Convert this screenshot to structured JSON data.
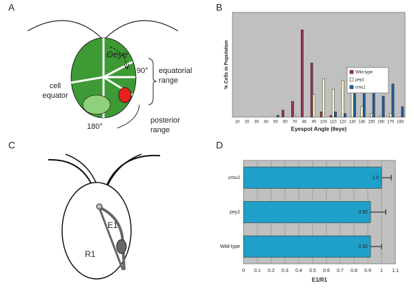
{
  "panel_labels": [
    "A",
    "B",
    "C",
    "D"
  ],
  "diagram_a": {
    "angle_symbol": "Θeye",
    "cell_equator": [
      "cell",
      "equator"
    ],
    "angle_90": "90°",
    "equatorial_range": [
      "equatorial",
      "range"
    ],
    "angle_180": "180°",
    "posterior_range": [
      "posterior",
      "range"
    ]
  },
  "diagram_c": {
    "e1": "E1",
    "r1": "R1"
  },
  "chart_data": [
    {
      "type": "bar",
      "y_label": "% Cells in Population",
      "x_label": "Eyespot Angle (θeye)",
      "categories": [
        "10",
        "20",
        "30",
        "40",
        "50",
        "60",
        "70",
        "80",
        "90",
        "100",
        "110",
        "120",
        "130",
        "140",
        "150",
        "160",
        "170",
        "180"
      ],
      "series": [
        {
          "name": "Wild-type",
          "color": "#993355",
          "values": [
            0,
            0,
            0,
            0,
            0,
            4,
            9,
            50,
            31,
            3,
            1,
            0,
            0,
            0,
            0,
            0,
            0,
            0
          ]
        },
        {
          "name": "pey1",
          "color": "#ffffcc",
          "values": [
            0,
            0,
            0,
            0,
            0,
            0,
            1,
            0,
            13,
            22,
            16,
            21,
            16,
            6,
            2,
            1,
            2,
            0
          ]
        },
        {
          "name": "cmu1",
          "color": "#1f5c9e",
          "values": [
            0,
            0,
            0,
            0,
            1,
            0,
            0,
            0,
            0,
            0,
            3,
            2,
            16,
            22,
            15,
            12,
            19,
            6
          ]
        }
      ],
      "ylim": [
        0,
        60
      ],
      "legend": "right"
    },
    {
      "type": "hbar",
      "x_label": "E1/R1",
      "color": "#1fa0c8",
      "categories": [
        "Wild-type",
        "pey1",
        "cmu1"
      ],
      "values": [
        0.92,
        0.92,
        1.0
      ],
      "value_labels": [
        "0.92",
        "0.92",
        "1.0"
      ],
      "errors": [
        0.08,
        0.11,
        0.07
      ],
      "xlim": [
        0,
        1.1
      ],
      "xticks": [
        0,
        0.1,
        0.2,
        0.3,
        0.4,
        0.5,
        0.6,
        0.7,
        0.8,
        0.9,
        1,
        1.1
      ],
      "grid": true
    }
  ]
}
